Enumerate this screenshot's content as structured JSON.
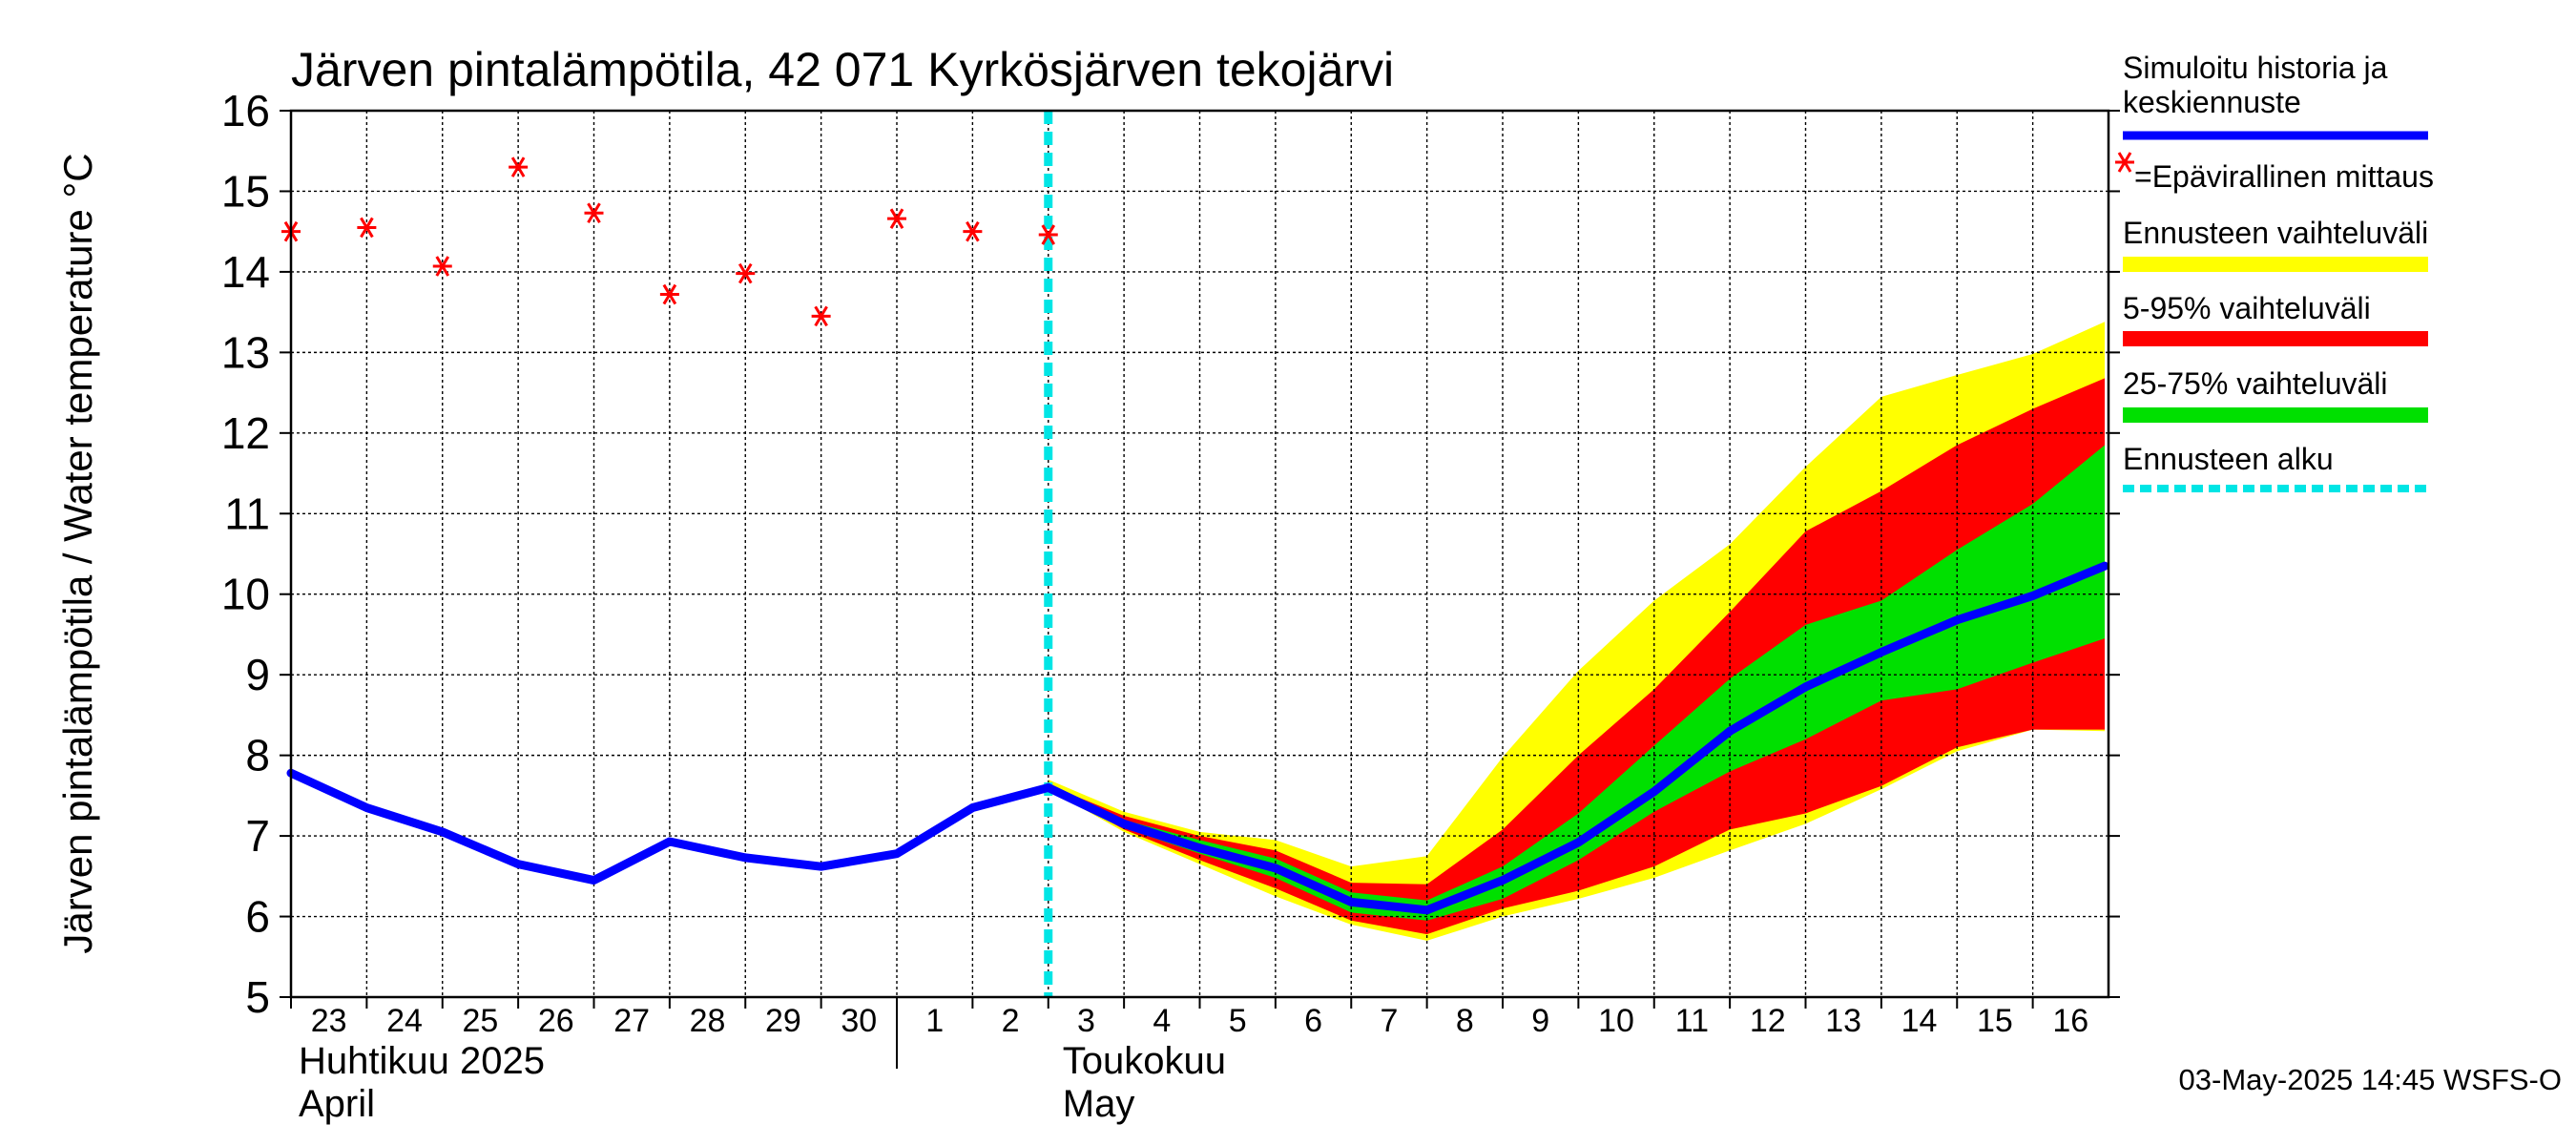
{
  "chart_data": {
    "type": "line",
    "title": "Järven pintalämpötila, 42 071 Kyrkösjärven tekojärvi",
    "ylabel": "Järven pintalämpötila / Water temperature °C",
    "ylim": [
      5,
      16
    ],
    "yticks": [
      "5",
      "6",
      "7",
      "8",
      "9",
      "10",
      "11",
      "12",
      "13",
      "14",
      "15",
      "16"
    ],
    "grid": true,
    "legend_position": "right",
    "x_day_labels": [
      "23",
      "24",
      "25",
      "26",
      "27",
      "28",
      "29",
      "30",
      "1",
      "2",
      "3",
      "4",
      "5",
      "6",
      "7",
      "8",
      "9",
      "10",
      "11",
      "12",
      "13",
      "14",
      "15",
      "16"
    ],
    "month_labels": [
      {
        "fi": "Huhtikuu  2025",
        "en": "April"
      },
      {
        "fi": "Toukokuu",
        "en": "May"
      }
    ],
    "forecast_start_day": 10,
    "colors": {
      "history": "#0000ff",
      "measurement": "#ff0000",
      "range_full": "#ffff00",
      "range_5_95": "#ff0000",
      "range_25_75": "#00e000",
      "forecast_start": "#00e5e5"
    },
    "series": [
      {
        "name": "Simuloitu historia ja keskiennuste",
        "x": [
          0,
          1,
          2,
          3,
          4,
          5,
          6,
          7,
          8,
          9,
          10,
          11,
          12,
          13,
          14,
          15,
          16,
          17,
          18,
          19,
          20,
          21,
          22,
          23,
          23.95
        ],
        "values": [
          7.78,
          7.35,
          7.05,
          6.65,
          6.45,
          6.93,
          6.73,
          6.62,
          6.78,
          7.35,
          7.6,
          7.15,
          6.85,
          6.6,
          6.18,
          6.08,
          6.45,
          6.92,
          7.55,
          8.3,
          8.85,
          9.28,
          9.68,
          9.98,
          10.35
        ]
      },
      {
        "name": "=Epävirallinen mittaus",
        "x": [
          0,
          1,
          2,
          3,
          4,
          5,
          6,
          7,
          8,
          9,
          10
        ],
        "values": [
          14.5,
          14.55,
          14.07,
          15.3,
          14.73,
          13.72,
          13.98,
          13.45,
          14.66,
          14.5,
          14.46
        ]
      }
    ],
    "bands": [
      {
        "name": "Ennusteen vaihteluväli",
        "x": [
          10,
          11,
          12,
          13,
          14,
          15,
          16,
          17,
          18,
          19,
          20,
          21,
          22,
          23,
          23.95
        ],
        "upper": [
          7.7,
          7.3,
          7.05,
          6.95,
          6.62,
          6.75,
          7.98,
          9.05,
          9.92,
          10.62,
          11.58,
          12.45,
          12.72,
          12.98,
          13.38
        ],
        "lower": [
          7.58,
          7.05,
          6.65,
          6.25,
          5.9,
          5.7,
          6.0,
          6.22,
          6.48,
          6.82,
          7.15,
          7.58,
          8.05,
          8.32,
          8.3
        ]
      },
      {
        "name": "5-95% vaihteluväli",
        "x": [
          10,
          11,
          12,
          13,
          14,
          15,
          16,
          17,
          18,
          19,
          20,
          21,
          22,
          23,
          23.95
        ],
        "upper": [
          7.63,
          7.25,
          7.0,
          6.82,
          6.42,
          6.4,
          7.08,
          8.0,
          8.82,
          9.78,
          10.78,
          11.28,
          11.85,
          12.3,
          12.68
        ],
        "lower": [
          7.6,
          7.08,
          6.7,
          6.35,
          5.95,
          5.78,
          6.1,
          6.32,
          6.62,
          7.08,
          7.28,
          7.62,
          8.1,
          8.32,
          8.32
        ]
      },
      {
        "name": "25-75% vaihteluväli",
        "x": [
          10,
          11,
          12,
          13,
          14,
          15,
          16,
          17,
          18,
          19,
          20,
          21,
          22,
          23,
          23.95
        ],
        "upper": [
          7.62,
          7.2,
          6.95,
          6.72,
          6.3,
          6.2,
          6.62,
          7.28,
          8.12,
          8.95,
          9.62,
          9.92,
          10.55,
          11.12,
          11.85
        ],
        "lower": [
          7.6,
          7.1,
          6.78,
          6.48,
          6.05,
          5.95,
          6.22,
          6.7,
          7.3,
          7.8,
          8.2,
          8.68,
          8.82,
          9.15,
          9.45
        ]
      }
    ]
  },
  "legend": [
    {
      "key": "history",
      "lines": [
        "Simuloitu historia ja",
        "keskiennuste"
      ]
    },
    {
      "key": "measurement",
      "lines": [
        "=Epävirallinen mittaus"
      ]
    },
    {
      "key": "range_full",
      "lines": [
        "Ennusteen vaihteluväli"
      ]
    },
    {
      "key": "range_5_95",
      "lines": [
        "5-95% vaihteluväli"
      ]
    },
    {
      "key": "range_25_75",
      "lines": [
        "25-75% vaihteluväli"
      ]
    },
    {
      "key": "forecast_start",
      "lines": [
        "Ennusteen alku"
      ]
    }
  ],
  "footer": "03-May-2025 14:45 WSFS-O"
}
